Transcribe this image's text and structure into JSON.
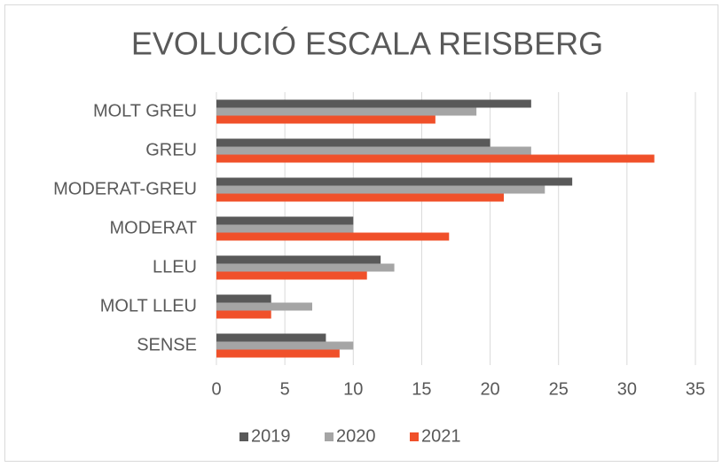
{
  "chart_data": {
    "type": "bar",
    "orientation": "horizontal",
    "title": "EVOLUCIÓ ESCALA REISBERG",
    "categories": [
      "MOLT GREU",
      "GREU",
      "MODERAT-GREU",
      "MODERAT",
      "LLEU",
      "MOLT LLEU",
      "SENSE"
    ],
    "series": [
      {
        "name": "2019",
        "color": "#595959",
        "values": [
          23,
          20,
          26,
          10,
          12,
          4,
          8
        ]
      },
      {
        "name": "2020",
        "color": "#a5a5a5",
        "values": [
          19,
          23,
          24,
          10,
          13,
          7,
          10
        ]
      },
      {
        "name": "2021",
        "color": "#f0502a",
        "values": [
          16,
          32,
          21,
          17,
          11,
          4,
          9
        ]
      }
    ],
    "xlim": [
      0,
      35
    ],
    "xticks": [
      0,
      5,
      10,
      15,
      20,
      25,
      30,
      35
    ],
    "grid": true,
    "legend": "bottom"
  }
}
